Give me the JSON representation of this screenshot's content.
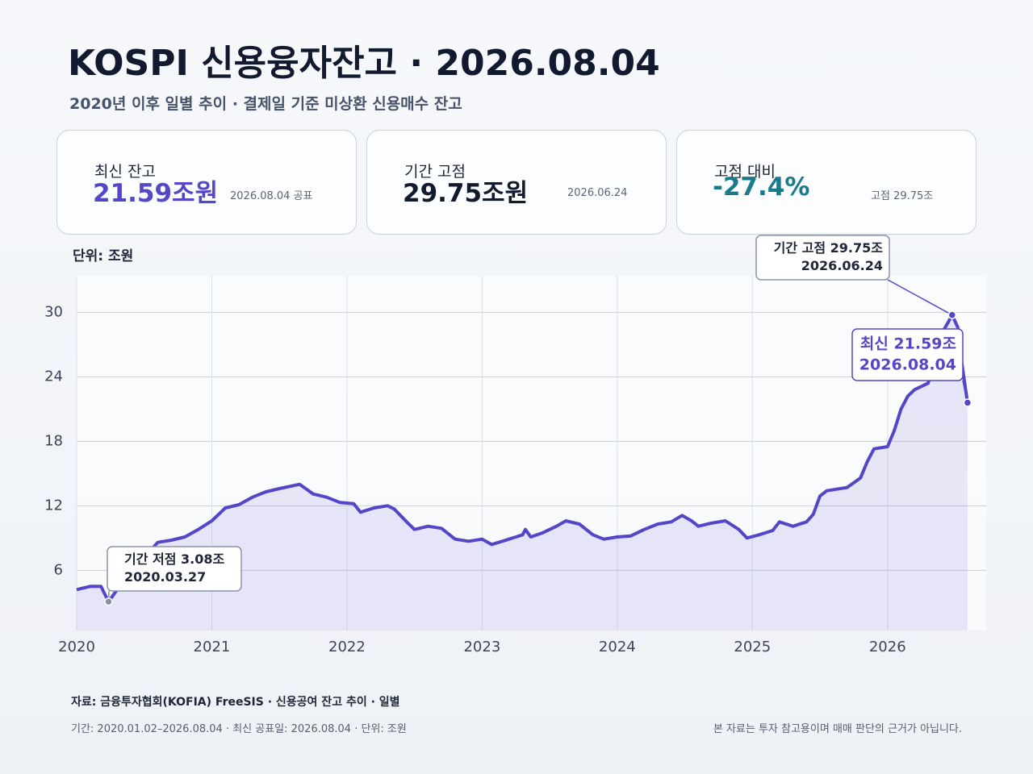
{
  "title": "KOSPI 신용융자잔고 · 2026.08.04",
  "subtitle": "2020년 이후 일별 추이 · 결제일 기준 미상환 신용매수 잔고",
  "cards": [
    {
      "label": "최신 잔고",
      "value": "21.59조원",
      "note": "2026.08.04 공표"
    },
    {
      "label": "기간 고점",
      "value": "29.75조원",
      "note": "2026.06.24"
    },
    {
      "label": "고점 대비",
      "value": "-27.4%",
      "note": "고점 29.75조"
    }
  ],
  "chart_data": {
    "type": "line",
    "y_label": "단위: 조원",
    "color": "#5546c8",
    "grid": true,
    "xlim": [
      2020,
      2026.73
    ],
    "xticks": [
      2020,
      2021,
      2022,
      2023,
      2024,
      2025,
      2026
    ],
    "ylim": [
      0.4,
      33.4
    ],
    "yticks": [
      6,
      12,
      18,
      24,
      30
    ],
    "x": [
      2020.0,
      2020.1,
      2020.18,
      2020.236,
      2020.3,
      2020.4,
      2020.5,
      2020.6,
      2020.7,
      2020.8,
      2020.9,
      2021.0,
      2021.1,
      2021.2,
      2021.3,
      2021.4,
      2021.5,
      2021.65,
      2021.75,
      2021.85,
      2021.95,
      2022.05,
      2022.1,
      2022.2,
      2022.3,
      2022.35,
      2022.45,
      2022.5,
      2022.6,
      2022.7,
      2022.8,
      2022.9,
      2023.0,
      2023.07,
      2023.15,
      2023.25,
      2023.3,
      2023.32,
      2023.36,
      2023.45,
      2023.55,
      2023.62,
      2023.72,
      2023.82,
      2023.9,
      2024.0,
      2024.1,
      2024.2,
      2024.3,
      2024.4,
      2024.48,
      2024.55,
      2024.6,
      2024.7,
      2024.8,
      2024.9,
      2024.96,
      2025.05,
      2025.15,
      2025.2,
      2025.3,
      2025.4,
      2025.45,
      2025.5,
      2025.55,
      2025.7,
      2025.8,
      2025.85,
      2025.9,
      2026.0,
      2026.05,
      2026.1,
      2026.15,
      2026.2,
      2026.3,
      2026.35,
      2026.4,
      2026.45,
      2026.478,
      2026.52,
      2026.55,
      2026.592
    ],
    "values": [
      4.2,
      4.5,
      4.5,
      3.08,
      4.2,
      5.8,
      7.2,
      8.6,
      8.8,
      9.1,
      9.8,
      10.6,
      11.8,
      12.1,
      12.8,
      13.3,
      13.6,
      14.0,
      13.1,
      12.8,
      12.3,
      12.2,
      11.4,
      11.8,
      12.0,
      11.7,
      10.4,
      9.8,
      10.1,
      9.9,
      8.9,
      8.7,
      8.9,
      8.4,
      8.7,
      9.1,
      9.3,
      9.8,
      9.1,
      9.5,
      10.1,
      10.6,
      10.3,
      9.3,
      8.9,
      9.1,
      9.2,
      9.8,
      10.3,
      10.5,
      11.1,
      10.6,
      10.1,
      10.4,
      10.6,
      9.8,
      9.0,
      9.3,
      9.7,
      10.5,
      10.1,
      10.5,
      11.2,
      12.9,
      13.4,
      13.7,
      14.6,
      16.1,
      17.3,
      17.5,
      19.0,
      21.0,
      22.2,
      22.8,
      23.4,
      25.4,
      28.0,
      29.1,
      29.75,
      28.6,
      25.2,
      21.59
    ],
    "annotations": {
      "low": {
        "text": "기간 저점  3.08조",
        "date": "2020.03.27"
      },
      "high": {
        "text": "기간 고점  29.75조",
        "date": "2026.06.24"
      },
      "latest": {
        "text": "최신  21.59조",
        "date": "2026.08.04"
      }
    }
  },
  "footer": {
    "source": "자료: 금융투자협회(KOFIA) FreeSIS · 신용공여 잔고 추이 · 일별",
    "period": "기간: 2020.01.02–2026.08.04 · 최신 공표일: 2026.08.04 · 단위: 조원",
    "disclaimer": "본 자료는 투자 참고용이며 매매 판단의 근거가 아닙니다."
  }
}
